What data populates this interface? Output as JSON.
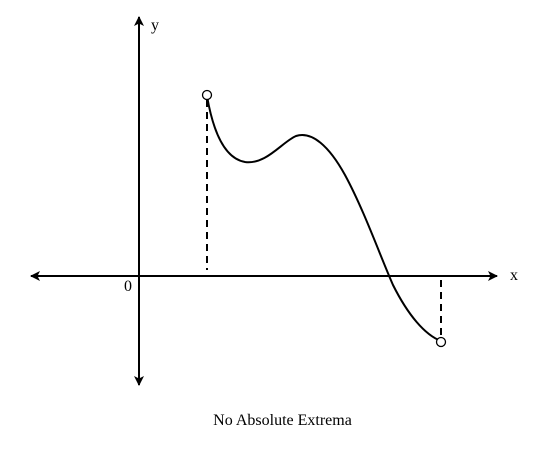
{
  "diagram": {
    "x_axis_label": "x",
    "y_axis_label": "y",
    "origin_label": "0",
    "caption": "No Absolute Extrema",
    "colors": {
      "line": "#000000",
      "open_point_fill": "#ffffff",
      "background": "#ffffff"
    }
  }
}
